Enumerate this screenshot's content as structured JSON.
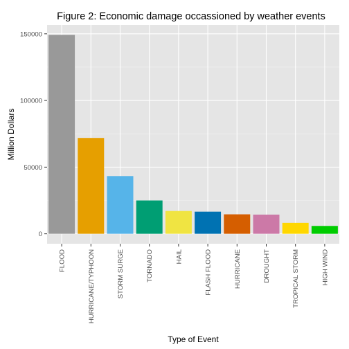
{
  "chart_data": {
    "type": "bar",
    "title": "Figure 2: Economic damage occassioned by weather events",
    "xlabel": "Type of Event",
    "ylabel": "Million Dollars",
    "categories": [
      "FLOOD",
      "HURRICANE/TYPHOON",
      "STORM SURGE",
      "TORNADO",
      "HAIL",
      "FLASH FLOOD",
      "HURRICANE",
      "DROUGHT",
      "TROPICAL STORM",
      "HIGH WIND"
    ],
    "values": [
      149200,
      71900,
      43300,
      25000,
      17100,
      16600,
      14600,
      14400,
      8200,
      5900
    ],
    "colors": [
      "#999999",
      "#E69F00",
      "#56B4E9",
      "#009E73",
      "#F0E442",
      "#0072B2",
      "#D55E00",
      "#CC79A7",
      "#FFD700",
      "#00CC00"
    ],
    "yticks": [
      0,
      50000,
      100000,
      150000
    ],
    "ytick_labels": [
      "0",
      "50000",
      "100000",
      "150000"
    ],
    "ylim": [
      -7460,
      156660
    ],
    "grid": true,
    "panel_background": "#e5e5e5",
    "grid_color": "#ffffff"
  }
}
